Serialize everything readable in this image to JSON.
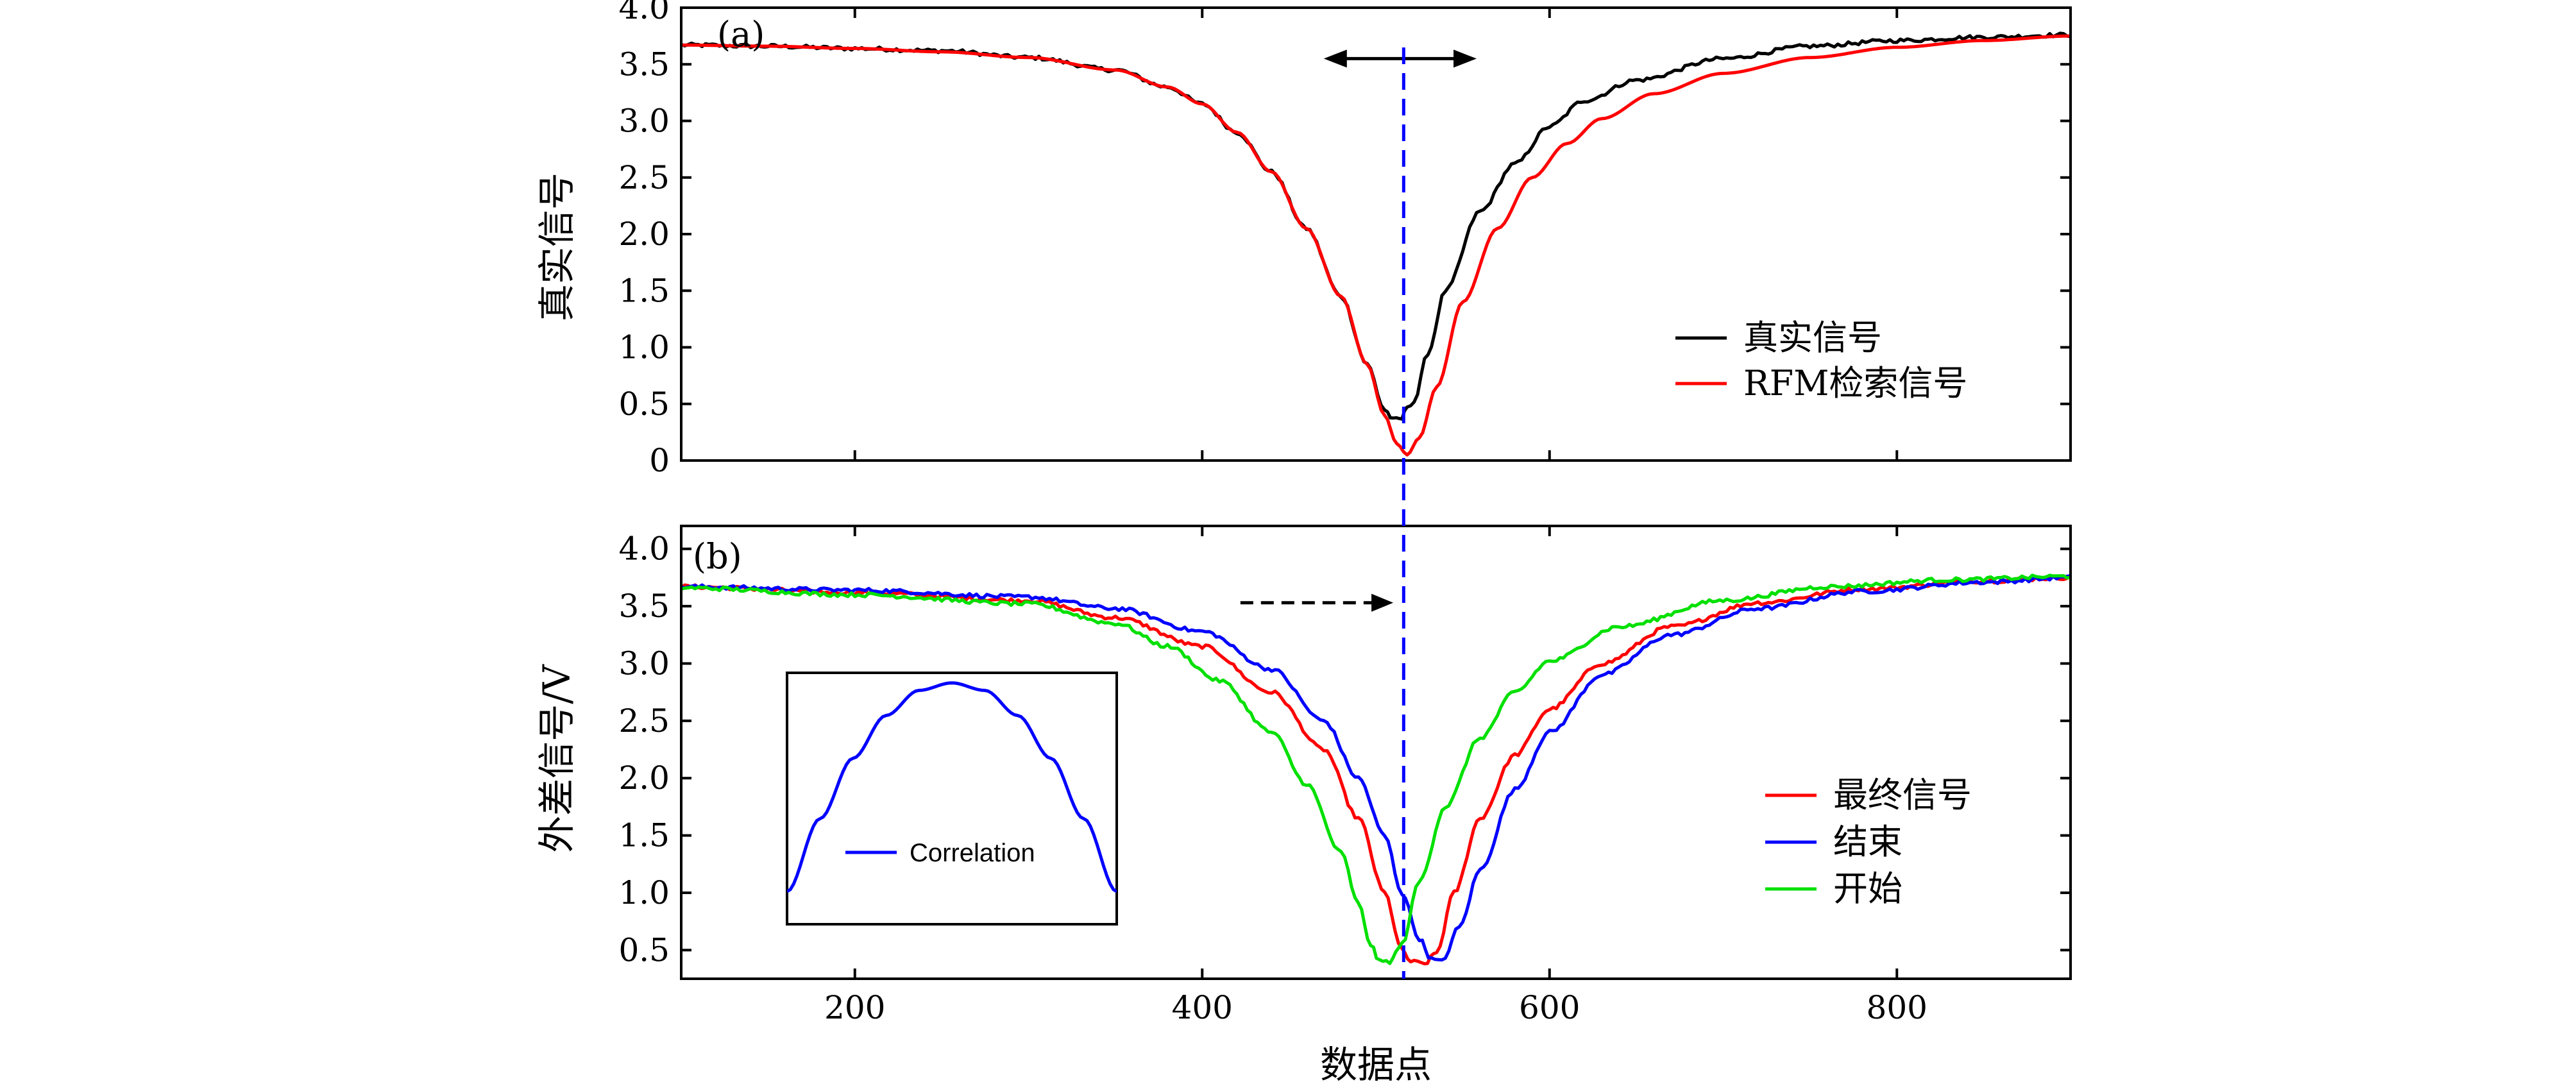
{
  "chart_data": [
    {
      "type": "line",
      "panel_label": "(a)",
      "title": "",
      "xlabel": "",
      "ylabel": "真实信号",
      "xlim": [
        100,
        900
      ],
      "ylim": [
        0,
        4.0
      ],
      "yticks": [
        "0",
        "0.5",
        "1.0",
        "1.5",
        "2.0",
        "2.5",
        "3.0",
        "3.5",
        "4.0"
      ],
      "xticks": [],
      "legend_position": "right",
      "series": [
        {
          "name": "真实信号",
          "color": "#000000",
          "noise": true,
          "points": [
            [
              100,
              3.67
            ],
            [
              150,
              3.66
            ],
            [
              200,
              3.64
            ],
            [
              250,
              3.62
            ],
            [
              300,
              3.56
            ],
            [
              350,
              3.45
            ],
            [
              380,
              3.3
            ],
            [
              400,
              3.15
            ],
            [
              420,
              2.9
            ],
            [
              440,
              2.55
            ],
            [
              460,
              2.05
            ],
            [
              480,
              1.45
            ],
            [
              495,
              0.85
            ],
            [
              505,
              0.45
            ],
            [
              510,
              0.36
            ],
            [
              515,
              0.37
            ],
            [
              518,
              0.48
            ],
            [
              522,
              0.52
            ],
            [
              530,
              0.95
            ],
            [
              540,
              1.5
            ],
            [
              560,
              2.2
            ],
            [
              580,
              2.62
            ],
            [
              600,
              2.95
            ],
            [
              620,
              3.18
            ],
            [
              650,
              3.36
            ],
            [
              700,
              3.55
            ],
            [
              750,
              3.66
            ],
            [
              800,
              3.71
            ],
            [
              850,
              3.74
            ],
            [
              900,
              3.76
            ]
          ]
        },
        {
          "name": "RFM检索信号",
          "color": "#ff0000",
          "noise": false,
          "points": [
            [
              100,
              3.67
            ],
            [
              150,
              3.66
            ],
            [
              200,
              3.64
            ],
            [
              250,
              3.61
            ],
            [
              300,
              3.56
            ],
            [
              350,
              3.45
            ],
            [
              380,
              3.3
            ],
            [
              400,
              3.15
            ],
            [
              420,
              2.9
            ],
            [
              440,
              2.55
            ],
            [
              460,
              2.05
            ],
            [
              480,
              1.45
            ],
            [
              495,
              0.85
            ],
            [
              505,
              0.4
            ],
            [
              512,
              0.15
            ],
            [
              518,
              0.05
            ],
            [
              525,
              0.2
            ],
            [
              535,
              0.65
            ],
            [
              550,
              1.4
            ],
            [
              570,
              2.05
            ],
            [
              590,
              2.5
            ],
            [
              610,
              2.8
            ],
            [
              630,
              3.02
            ],
            [
              660,
              3.24
            ],
            [
              700,
              3.42
            ],
            [
              750,
              3.56
            ],
            [
              800,
              3.65
            ],
            [
              850,
              3.71
            ],
            [
              900,
              3.75
            ]
          ]
        }
      ],
      "annotations": [
        {
          "type": "double-arrow",
          "x_from": 470,
          "x_to": 558,
          "y": 3.55,
          "color": "#000000"
        },
        {
          "type": "vertical-dashed-line",
          "x": 516,
          "color": "#0000ff"
        }
      ]
    },
    {
      "type": "line",
      "panel_label": "(b)",
      "title": "",
      "xlabel": "数据点",
      "ylabel": "外差信号/V",
      "xlim": [
        100,
        900
      ],
      "ylim": [
        0.25,
        4.2
      ],
      "yticks": [
        "0.5",
        "1.0",
        "1.5",
        "2.0",
        "2.5",
        "3.0",
        "3.5",
        "4.0"
      ],
      "xticks": [
        "200",
        "400",
        "600",
        "800"
      ],
      "legend_position": "right",
      "series": [
        {
          "name": "最终信号",
          "color": "#ff0000",
          "noise": true,
          "points": [
            [
              100,
              3.67
            ],
            [
              200,
              3.62
            ],
            [
              300,
              3.55
            ],
            [
              350,
              3.4
            ],
            [
              400,
              3.15
            ],
            [
              440,
              2.75
            ],
            [
              470,
              2.25
            ],
            [
              490,
              1.65
            ],
            [
              505,
              1.0
            ],
            [
              515,
              0.5
            ],
            [
              520,
              0.4
            ],
            [
              528,
              0.38
            ],
            [
              535,
              0.48
            ],
            [
              545,
              1.0
            ],
            [
              560,
              1.65
            ],
            [
              580,
              2.2
            ],
            [
              600,
              2.6
            ],
            [
              630,
              3.0
            ],
            [
              670,
              3.32
            ],
            [
              720,
              3.53
            ],
            [
              780,
              3.65
            ],
            [
              850,
              3.72
            ],
            [
              900,
              3.75
            ]
          ]
        },
        {
          "name": "结束",
          "color": "#0000ff",
          "noise": true,
          "points": [
            [
              100,
              3.67
            ],
            [
              200,
              3.64
            ],
            [
              300,
              3.58
            ],
            [
              350,
              3.48
            ],
            [
              400,
              3.28
            ],
            [
              440,
              2.95
            ],
            [
              470,
              2.5
            ],
            [
              490,
              2.0
            ],
            [
              505,
              1.5
            ],
            [
              515,
              1.0
            ],
            [
              525,
              0.6
            ],
            [
              532,
              0.42
            ],
            [
              538,
              0.4
            ],
            [
              548,
              0.7
            ],
            [
              560,
              1.2
            ],
            [
              580,
              1.9
            ],
            [
              600,
              2.4
            ],
            [
              630,
              2.9
            ],
            [
              670,
              3.25
            ],
            [
              720,
              3.48
            ],
            [
              780,
              3.63
            ],
            [
              850,
              3.71
            ],
            [
              900,
              3.75
            ]
          ]
        },
        {
          "name": "开始",
          "color": "#00e000",
          "noise": true,
          "points": [
            [
              100,
              3.66
            ],
            [
              200,
              3.6
            ],
            [
              300,
              3.52
            ],
            [
              350,
              3.35
            ],
            [
              380,
              3.15
            ],
            [
              410,
              2.85
            ],
            [
              440,
              2.4
            ],
            [
              460,
              1.95
            ],
            [
              480,
              1.35
            ],
            [
              490,
              0.9
            ],
            [
              497,
              0.55
            ],
            [
              502,
              0.4
            ],
            [
              508,
              0.4
            ],
            [
              515,
              0.55
            ],
            [
              525,
              1.1
            ],
            [
              540,
              1.75
            ],
            [
              560,
              2.35
            ],
            [
              580,
              2.75
            ],
            [
              600,
              3.02
            ],
            [
              640,
              3.32
            ],
            [
              700,
              3.55
            ],
            [
              760,
              3.67
            ],
            [
              830,
              3.73
            ],
            [
              900,
              3.76
            ]
          ]
        }
      ],
      "annotations": [
        {
          "type": "dashed-arrow",
          "x_from": 422,
          "x_to": 510,
          "y": 3.53,
          "color": "#000000"
        },
        {
          "type": "vertical-dashed-line",
          "x": 516,
          "color": "#0000ff"
        }
      ]
    },
    {
      "type": "line",
      "role": "inset",
      "title": "",
      "xlabel": "",
      "ylabel": "",
      "xlim": [
        0,
        1
      ],
      "ylim": [
        0,
        1
      ],
      "series": [
        {
          "name": "Correlation",
          "color": "#0000ff",
          "noise": false,
          "points": [
            [
              0,
              0.13
            ],
            [
              0.1,
              0.42
            ],
            [
              0.2,
              0.66
            ],
            [
              0.3,
              0.83
            ],
            [
              0.4,
              0.93
            ],
            [
              0.5,
              0.96
            ],
            [
              0.6,
              0.93
            ],
            [
              0.7,
              0.83
            ],
            [
              0.8,
              0.66
            ],
            [
              0.9,
              0.42
            ],
            [
              1.0,
              0.13
            ]
          ]
        }
      ]
    }
  ]
}
